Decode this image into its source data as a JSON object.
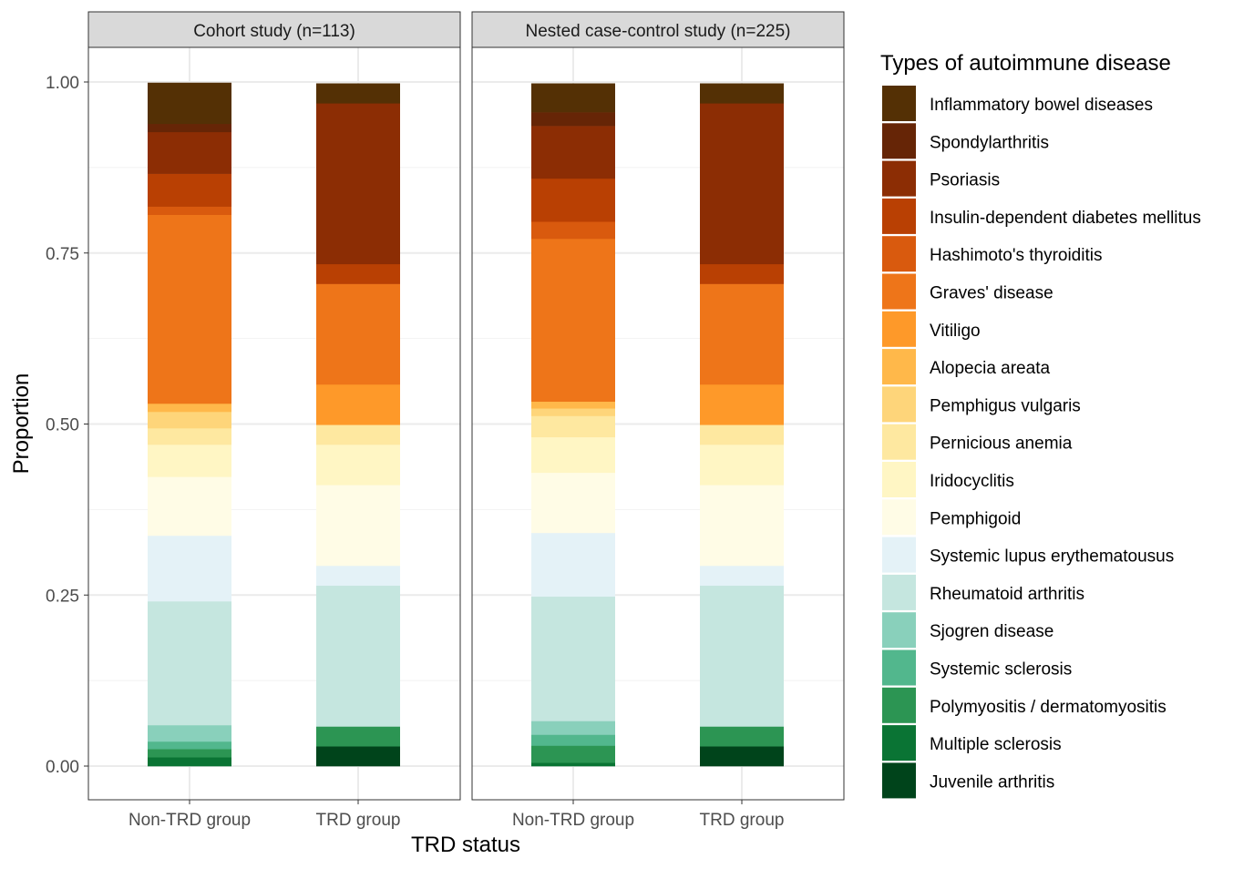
{
  "chart_data": {
    "type": "bar",
    "stacked": true,
    "xlabel": "TRD status",
    "ylabel": "Proportion",
    "ylim": [
      0,
      1
    ],
    "yticks": [
      "0.00",
      "0.25",
      "0.50",
      "0.75",
      "1.00"
    ],
    "categories": [
      "Non-TRD group",
      "TRD group"
    ],
    "grid": true,
    "legend_position": "right",
    "legend_title": "Types of autoimmune disease",
    "series_order_top_to_bottom": [
      "Inflammatory bowel diseases",
      "Spondylarthritis",
      "Psoriasis",
      "Insulin-dependent diabetes mellitus",
      "Hashimoto's thyroiditis",
      "Graves' disease",
      "Vitiligo",
      "Alopecia areata",
      "Pemphigus vulgaris",
      "Pernicious anemia",
      "Iridocyclitis",
      "Pemphigoid",
      "Systemic lupus erythematousus",
      "Rheumatoid arthritis",
      "Sjogren disease",
      "Systemic sclerosis",
      "Polymyositis / dermatomyositis",
      "Multiple sclerosis",
      "Juvenile arthritis"
    ],
    "colors": [
      "#543005",
      "#662506",
      "#8c2d04",
      "#b94003",
      "#d95a0e",
      "#ee7519",
      "#fe9929",
      "#ffb84a",
      "#fed57a",
      "#fee8a0",
      "#fff6c4",
      "#fffce6",
      "#e4f2f7",
      "#c5e6df",
      "#89d0bb",
      "#52b78d",
      "#2c9553",
      "#0a7434",
      "#00441b"
    ],
    "panels": [
      {
        "title": "Cohort study (n=113)",
        "values": {
          "Non-TRD group": [
            0.06,
            0.012,
            0.061,
            0.048,
            0.012,
            0.276,
            0,
            0.012,
            0.024,
            0.024,
            0.047,
            0.086,
            0.096,
            0.181,
            0.024,
            0.011,
            0.012,
            0.013,
            0
          ],
          "TRD group": [
            0.029,
            0,
            0.235,
            0.029,
            0,
            0.147,
            0.059,
            0,
            0,
            0.029,
            0.059,
            0.118,
            0.029,
            0.206,
            0,
            0,
            0.029,
            0,
            0.029
          ]
        }
      },
      {
        "title": "Nested case-control study (n=225)",
        "values": {
          "Non-TRD group": [
            0.042,
            0.02,
            0.077,
            0.063,
            0.025,
            0.238,
            0,
            0.01,
            0.011,
            0.031,
            0.052,
            0.088,
            0.093,
            0.182,
            0.02,
            0.016,
            0.025,
            0.005,
            0
          ],
          "TRD group": [
            0.029,
            0,
            0.235,
            0.029,
            0,
            0.147,
            0.059,
            0,
            0,
            0.029,
            0.059,
            0.118,
            0.029,
            0.206,
            0,
            0,
            0.029,
            0,
            0.029
          ]
        }
      }
    ]
  }
}
